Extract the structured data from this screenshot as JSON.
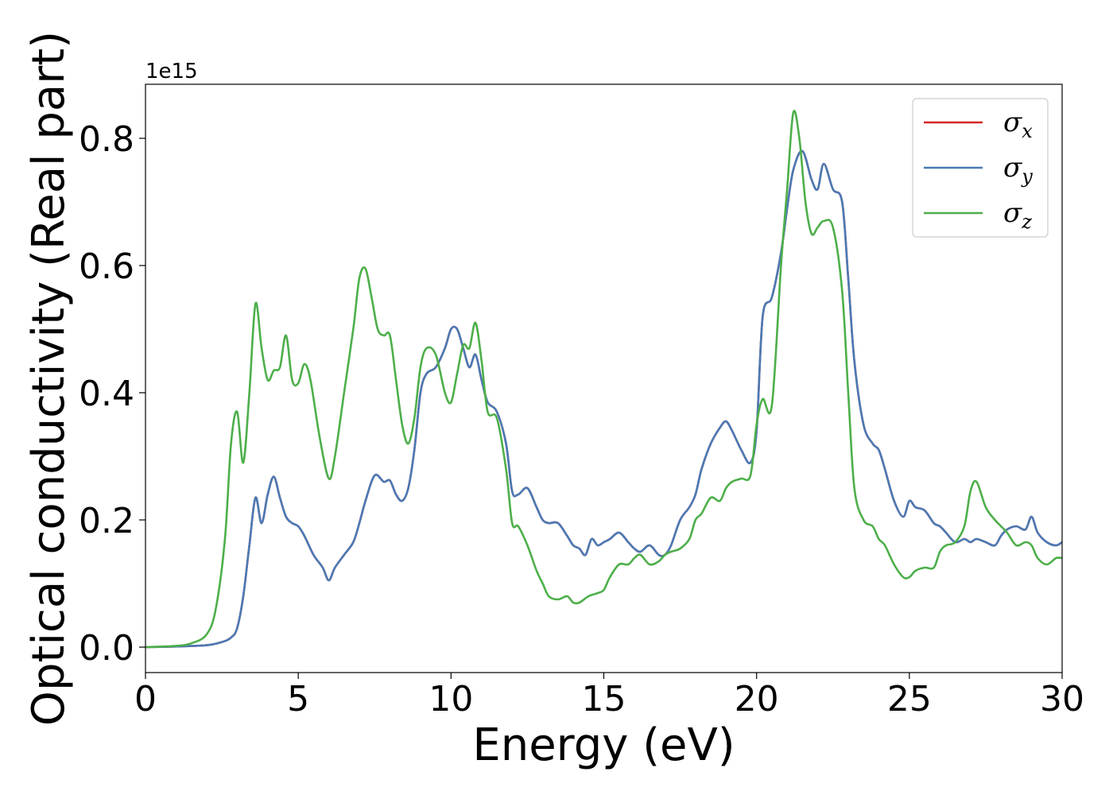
{
  "chart_data": {
    "type": "line",
    "xlabel": "Energy (eV)",
    "ylabel": "Optical conductivity (Real part)",
    "y_offset_label": "1e15",
    "xlim": [
      0,
      30
    ],
    "ylim": [
      -0.04,
      0.885
    ],
    "x_ticks": [
      0,
      5,
      10,
      15,
      20,
      25,
      30
    ],
    "x_tick_labels": [
      "0",
      "5",
      "10",
      "15",
      "20",
      "25",
      "30"
    ],
    "y_ticks": [
      0.0,
      0.2,
      0.4,
      0.6,
      0.8
    ],
    "y_tick_labels": [
      "0.0",
      "0.2",
      "0.4",
      "0.6",
      "0.8"
    ],
    "grid": false,
    "legend_position": "top-right",
    "series": [
      {
        "name": "σx",
        "symbol": "σ",
        "subscript": "x",
        "color": "#d62728",
        "x": [
          0,
          1,
          2,
          2.5,
          2.8,
          3.0,
          3.2,
          3.4,
          3.6,
          3.8,
          4.0,
          4.2,
          4.4,
          4.6,
          4.8,
          5.0,
          5.2,
          5.5,
          5.8,
          6.0,
          6.2,
          6.5,
          6.8,
          7.0,
          7.2,
          7.5,
          7.8,
          8.0,
          8.2,
          8.4,
          8.6,
          8.8,
          9.0,
          9.2,
          9.5,
          9.8,
          10.0,
          10.2,
          10.4,
          10.6,
          10.8,
          11.0,
          11.2,
          11.5,
          11.8,
          12.0,
          12.2,
          12.5,
          12.8,
          13.0,
          13.2,
          13.5,
          13.8,
          14.0,
          14.2,
          14.4,
          14.6,
          14.8,
          15.0,
          15.2,
          15.5,
          15.8,
          16.0,
          16.2,
          16.5,
          16.8,
          17.0,
          17.2,
          17.5,
          17.8,
          18.0,
          18.2,
          18.5,
          18.8,
          19.0,
          19.2,
          19.5,
          19.8,
          20.0,
          20.2,
          20.5,
          20.8,
          21.0,
          21.2,
          21.5,
          21.8,
          22.0,
          22.2,
          22.5,
          22.8,
          23.0,
          23.2,
          23.5,
          23.8,
          24.0,
          24.2,
          24.5,
          24.8,
          25.0,
          25.2,
          25.5,
          25.8,
          26.0,
          26.2,
          26.5,
          26.8,
          27.0,
          27.2,
          27.5,
          27.8,
          28.0,
          28.2,
          28.5,
          28.8,
          29.0,
          29.2,
          29.5,
          29.8,
          30.0
        ],
        "y": [
          0.0,
          0.001,
          0.003,
          0.008,
          0.015,
          0.03,
          0.08,
          0.16,
          0.235,
          0.195,
          0.24,
          0.268,
          0.235,
          0.205,
          0.195,
          0.19,
          0.175,
          0.145,
          0.125,
          0.105,
          0.125,
          0.145,
          0.165,
          0.195,
          0.23,
          0.27,
          0.26,
          0.262,
          0.24,
          0.23,
          0.25,
          0.31,
          0.4,
          0.43,
          0.44,
          0.47,
          0.5,
          0.5,
          0.47,
          0.44,
          0.46,
          0.42,
          0.385,
          0.37,
          0.32,
          0.245,
          0.24,
          0.25,
          0.22,
          0.2,
          0.195,
          0.195,
          0.175,
          0.16,
          0.155,
          0.145,
          0.17,
          0.16,
          0.165,
          0.17,
          0.18,
          0.165,
          0.155,
          0.15,
          0.16,
          0.145,
          0.145,
          0.16,
          0.2,
          0.22,
          0.24,
          0.28,
          0.32,
          0.345,
          0.355,
          0.34,
          0.31,
          0.29,
          0.34,
          0.52,
          0.55,
          0.62,
          0.69,
          0.75,
          0.78,
          0.735,
          0.72,
          0.76,
          0.72,
          0.7,
          0.58,
          0.45,
          0.35,
          0.32,
          0.31,
          0.28,
          0.23,
          0.205,
          0.23,
          0.22,
          0.215,
          0.195,
          0.19,
          0.18,
          0.165,
          0.17,
          0.165,
          0.17,
          0.165,
          0.16,
          0.175,
          0.185,
          0.19,
          0.185,
          0.205,
          0.18,
          0.165,
          0.16,
          0.165
        ]
      },
      {
        "name": "σy",
        "symbol": "σ",
        "subscript": "y",
        "color": "#4a7ab5",
        "x": [
          0,
          1,
          2,
          2.5,
          2.8,
          3.0,
          3.2,
          3.4,
          3.6,
          3.8,
          4.0,
          4.2,
          4.4,
          4.6,
          4.8,
          5.0,
          5.2,
          5.5,
          5.8,
          6.0,
          6.2,
          6.5,
          6.8,
          7.0,
          7.2,
          7.5,
          7.8,
          8.0,
          8.2,
          8.4,
          8.6,
          8.8,
          9.0,
          9.2,
          9.5,
          9.8,
          10.0,
          10.2,
          10.4,
          10.6,
          10.8,
          11.0,
          11.2,
          11.5,
          11.8,
          12.0,
          12.2,
          12.5,
          12.8,
          13.0,
          13.2,
          13.5,
          13.8,
          14.0,
          14.2,
          14.4,
          14.6,
          14.8,
          15.0,
          15.2,
          15.5,
          15.8,
          16.0,
          16.2,
          16.5,
          16.8,
          17.0,
          17.2,
          17.5,
          17.8,
          18.0,
          18.2,
          18.5,
          18.8,
          19.0,
          19.2,
          19.5,
          19.8,
          20.0,
          20.2,
          20.5,
          20.8,
          21.0,
          21.2,
          21.5,
          21.8,
          22.0,
          22.2,
          22.5,
          22.8,
          23.0,
          23.2,
          23.5,
          23.8,
          24.0,
          24.2,
          24.5,
          24.8,
          25.0,
          25.2,
          25.5,
          25.8,
          26.0,
          26.2,
          26.5,
          26.8,
          27.0,
          27.2,
          27.5,
          27.8,
          28.0,
          28.2,
          28.5,
          28.8,
          29.0,
          29.2,
          29.5,
          29.8,
          30.0
        ],
        "y": [
          0.0,
          0.001,
          0.003,
          0.008,
          0.015,
          0.03,
          0.08,
          0.16,
          0.235,
          0.195,
          0.24,
          0.268,
          0.235,
          0.205,
          0.195,
          0.19,
          0.175,
          0.145,
          0.125,
          0.105,
          0.125,
          0.145,
          0.165,
          0.195,
          0.23,
          0.27,
          0.26,
          0.262,
          0.24,
          0.23,
          0.25,
          0.31,
          0.4,
          0.43,
          0.44,
          0.47,
          0.5,
          0.5,
          0.47,
          0.44,
          0.46,
          0.42,
          0.385,
          0.37,
          0.32,
          0.245,
          0.24,
          0.25,
          0.22,
          0.2,
          0.195,
          0.195,
          0.175,
          0.16,
          0.155,
          0.145,
          0.17,
          0.16,
          0.165,
          0.17,
          0.18,
          0.165,
          0.155,
          0.15,
          0.16,
          0.145,
          0.145,
          0.16,
          0.2,
          0.22,
          0.24,
          0.28,
          0.32,
          0.345,
          0.355,
          0.34,
          0.31,
          0.29,
          0.34,
          0.52,
          0.55,
          0.62,
          0.69,
          0.75,
          0.78,
          0.735,
          0.72,
          0.76,
          0.72,
          0.7,
          0.58,
          0.45,
          0.35,
          0.32,
          0.31,
          0.28,
          0.23,
          0.205,
          0.23,
          0.22,
          0.215,
          0.195,
          0.19,
          0.18,
          0.165,
          0.17,
          0.165,
          0.17,
          0.165,
          0.16,
          0.175,
          0.185,
          0.19,
          0.185,
          0.205,
          0.18,
          0.165,
          0.16,
          0.165
        ]
      },
      {
        "name": "σz",
        "symbol": "σ",
        "subscript": "z",
        "color": "#4daf4a",
        "x": [
          0,
          1,
          1.5,
          2.0,
          2.3,
          2.6,
          2.8,
          3.0,
          3.2,
          3.4,
          3.6,
          3.8,
          4.0,
          4.2,
          4.4,
          4.6,
          4.8,
          5.0,
          5.2,
          5.4,
          5.7,
          6.0,
          6.2,
          6.5,
          6.8,
          7.0,
          7.2,
          7.4,
          7.6,
          7.8,
          8.0,
          8.2,
          8.4,
          8.6,
          8.8,
          9.0,
          9.2,
          9.5,
          9.8,
          10.0,
          10.2,
          10.4,
          10.6,
          10.8,
          11.0,
          11.2,
          11.5,
          11.8,
          12.0,
          12.2,
          12.5,
          12.8,
          13.0,
          13.2,
          13.5,
          13.8,
          14.0,
          14.2,
          14.5,
          14.8,
          15.0,
          15.2,
          15.5,
          15.8,
          16.0,
          16.2,
          16.5,
          16.8,
          17.0,
          17.2,
          17.5,
          17.8,
          18.0,
          18.2,
          18.5,
          18.8,
          19.0,
          19.2,
          19.5,
          19.8,
          20.0,
          20.2,
          20.5,
          20.8,
          21.0,
          21.2,
          21.4,
          21.6,
          21.8,
          22.0,
          22.2,
          22.5,
          22.8,
          23.0,
          23.2,
          23.5,
          23.8,
          24.0,
          24.2,
          24.5,
          24.8,
          25.0,
          25.2,
          25.5,
          25.8,
          26.0,
          26.2,
          26.5,
          26.8,
          27.0,
          27.2,
          27.5,
          27.8,
          28.0,
          28.2,
          28.5,
          28.8,
          29.0,
          29.2,
          29.5,
          29.8,
          30.0
        ],
        "y": [
          0.0,
          0.002,
          0.006,
          0.02,
          0.06,
          0.17,
          0.32,
          0.37,
          0.29,
          0.4,
          0.54,
          0.47,
          0.42,
          0.435,
          0.44,
          0.49,
          0.42,
          0.415,
          0.445,
          0.42,
          0.33,
          0.265,
          0.3,
          0.4,
          0.5,
          0.58,
          0.595,
          0.55,
          0.5,
          0.49,
          0.49,
          0.42,
          0.35,
          0.32,
          0.36,
          0.44,
          0.47,
          0.46,
          0.4,
          0.385,
          0.43,
          0.475,
          0.47,
          0.51,
          0.45,
          0.37,
          0.36,
          0.28,
          0.195,
          0.19,
          0.16,
          0.12,
          0.1,
          0.08,
          0.075,
          0.08,
          0.07,
          0.07,
          0.08,
          0.085,
          0.09,
          0.11,
          0.13,
          0.13,
          0.14,
          0.145,
          0.13,
          0.135,
          0.145,
          0.15,
          0.155,
          0.17,
          0.2,
          0.21,
          0.235,
          0.23,
          0.25,
          0.26,
          0.265,
          0.27,
          0.35,
          0.39,
          0.38,
          0.6,
          0.72,
          0.84,
          0.8,
          0.7,
          0.65,
          0.66,
          0.67,
          0.66,
          0.56,
          0.4,
          0.25,
          0.2,
          0.19,
          0.17,
          0.16,
          0.13,
          0.11,
          0.11,
          0.12,
          0.125,
          0.125,
          0.15,
          0.16,
          0.165,
          0.19,
          0.245,
          0.26,
          0.22,
          0.2,
          0.19,
          0.18,
          0.16,
          0.165,
          0.16,
          0.14,
          0.13,
          0.14,
          0.14
        ]
      }
    ]
  }
}
